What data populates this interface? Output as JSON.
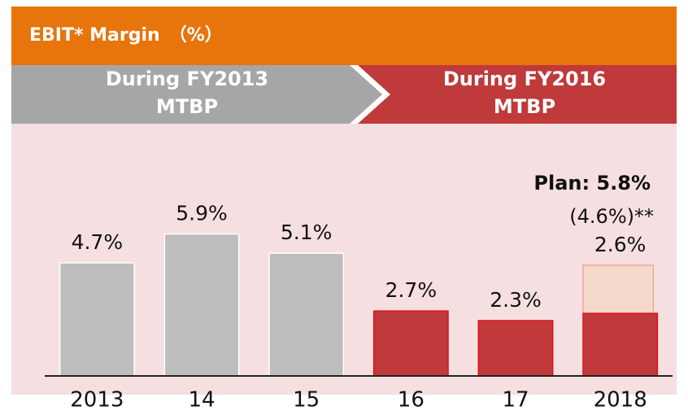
{
  "chart_data": {
    "type": "bar",
    "title": "EBIT* Margin　（%）",
    "phases": [
      {
        "lines": [
          "During FY2013",
          "MTBP"
        ],
        "color": "#a6a6a6"
      },
      {
        "lines": [
          "During FY2016",
          "MTBP"
        ],
        "color": "#c0393b"
      }
    ],
    "categories": [
      "2013",
      "14",
      "15",
      "16",
      "17",
      "2018"
    ],
    "values": [
      4.7,
      5.9,
      5.1,
      2.7,
      2.3,
      2.6
    ],
    "value_labels": [
      "4.7%",
      "5.9%",
      "5.1%",
      "2.7%",
      "2.3%",
      "2.6%"
    ],
    "colors": [
      "#bdbdbd",
      "#bdbdbd",
      "#bdbdbd",
      "#c0393b",
      "#c0393b",
      "#c0393b"
    ],
    "plan_values": [
      null,
      null,
      null,
      null,
      null,
      4.6
    ],
    "plan_color": "#f5d9cc",
    "annotations": [
      "Plan: 5.8%",
      "(4.6%)**"
    ],
    "ylim": [
      0,
      7
    ]
  }
}
